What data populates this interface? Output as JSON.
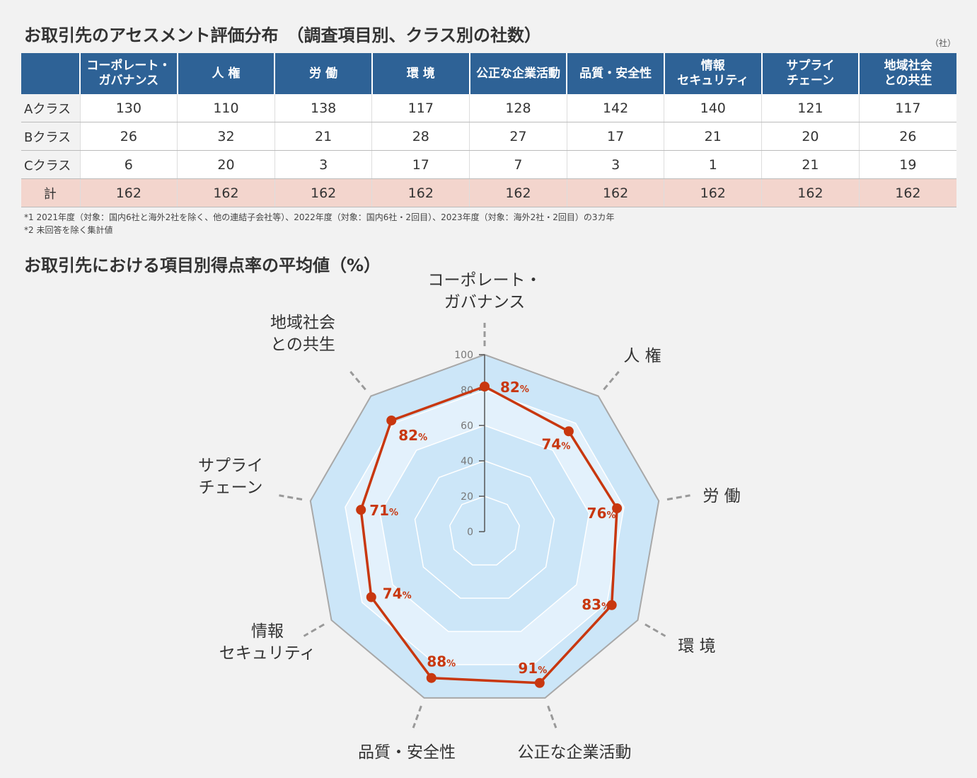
{
  "section1": {
    "title": "お取引先のアセスメント評価分布　（調査項目別、クラス別の社数）",
    "unit": "（社）",
    "columns": [
      "コーポレート・\nガバナンス",
      "人 権",
      "労 働",
      "環 境",
      "公正な企業活動",
      "品質・安全性",
      "情報\nセキュリティ",
      "サプライ\nチェーン",
      "地域社会\nとの共生"
    ],
    "rows": [
      {
        "label": "Aクラス",
        "values": [
          "130",
          "110",
          "138",
          "117",
          "128",
          "142",
          "140",
          "121",
          "117"
        ]
      },
      {
        "label": "Bクラス",
        "values": [
          "26",
          "32",
          "21",
          "28",
          "27",
          "17",
          "21",
          "20",
          "26"
        ]
      },
      {
        "label": "Cクラス",
        "values": [
          "6",
          "20",
          "3",
          "17",
          "7",
          "3",
          "1",
          "21",
          "19"
        ]
      }
    ],
    "total": {
      "label": "計",
      "values": [
        "162",
        "162",
        "162",
        "162",
        "162",
        "162",
        "162",
        "162",
        "162"
      ]
    },
    "notes": [
      "*1 2021年度（対象：国内6社と海外2社を除く、他の連結子会社等）、2022年度（対象：国内6社・2回目）、2023年度（対象：海外2社・2回目）の3カ年",
      "*2 未回答を除く集計値"
    ]
  },
  "section2": {
    "title": "お取引先における項目別得点率の平均値（%）"
  },
  "chart_data": {
    "type": "radar",
    "title": "お取引先における項目別得点率の平均値（%）",
    "categories": [
      "コーポレート・\nガバナンス",
      "人 権",
      "労 働",
      "環 境",
      "公正な企業活動",
      "品質・安全性",
      "情報\nセキュリティ",
      "サプライ\nチェーン",
      "地域社会\nとの共生"
    ],
    "values": [
      82,
      74,
      76,
      83,
      91,
      88,
      74,
      71,
      82
    ],
    "value_suffix": "%",
    "r_ticks": [
      "0",
      "20",
      "40",
      "60",
      "80",
      "100"
    ],
    "rlim": [
      0,
      100
    ],
    "colors": {
      "series": "#c8370f",
      "band_dark": "#cce6f8",
      "band_light": "#e3f1fc",
      "outline": "#a8a8a8",
      "axis": "#555555"
    }
  }
}
